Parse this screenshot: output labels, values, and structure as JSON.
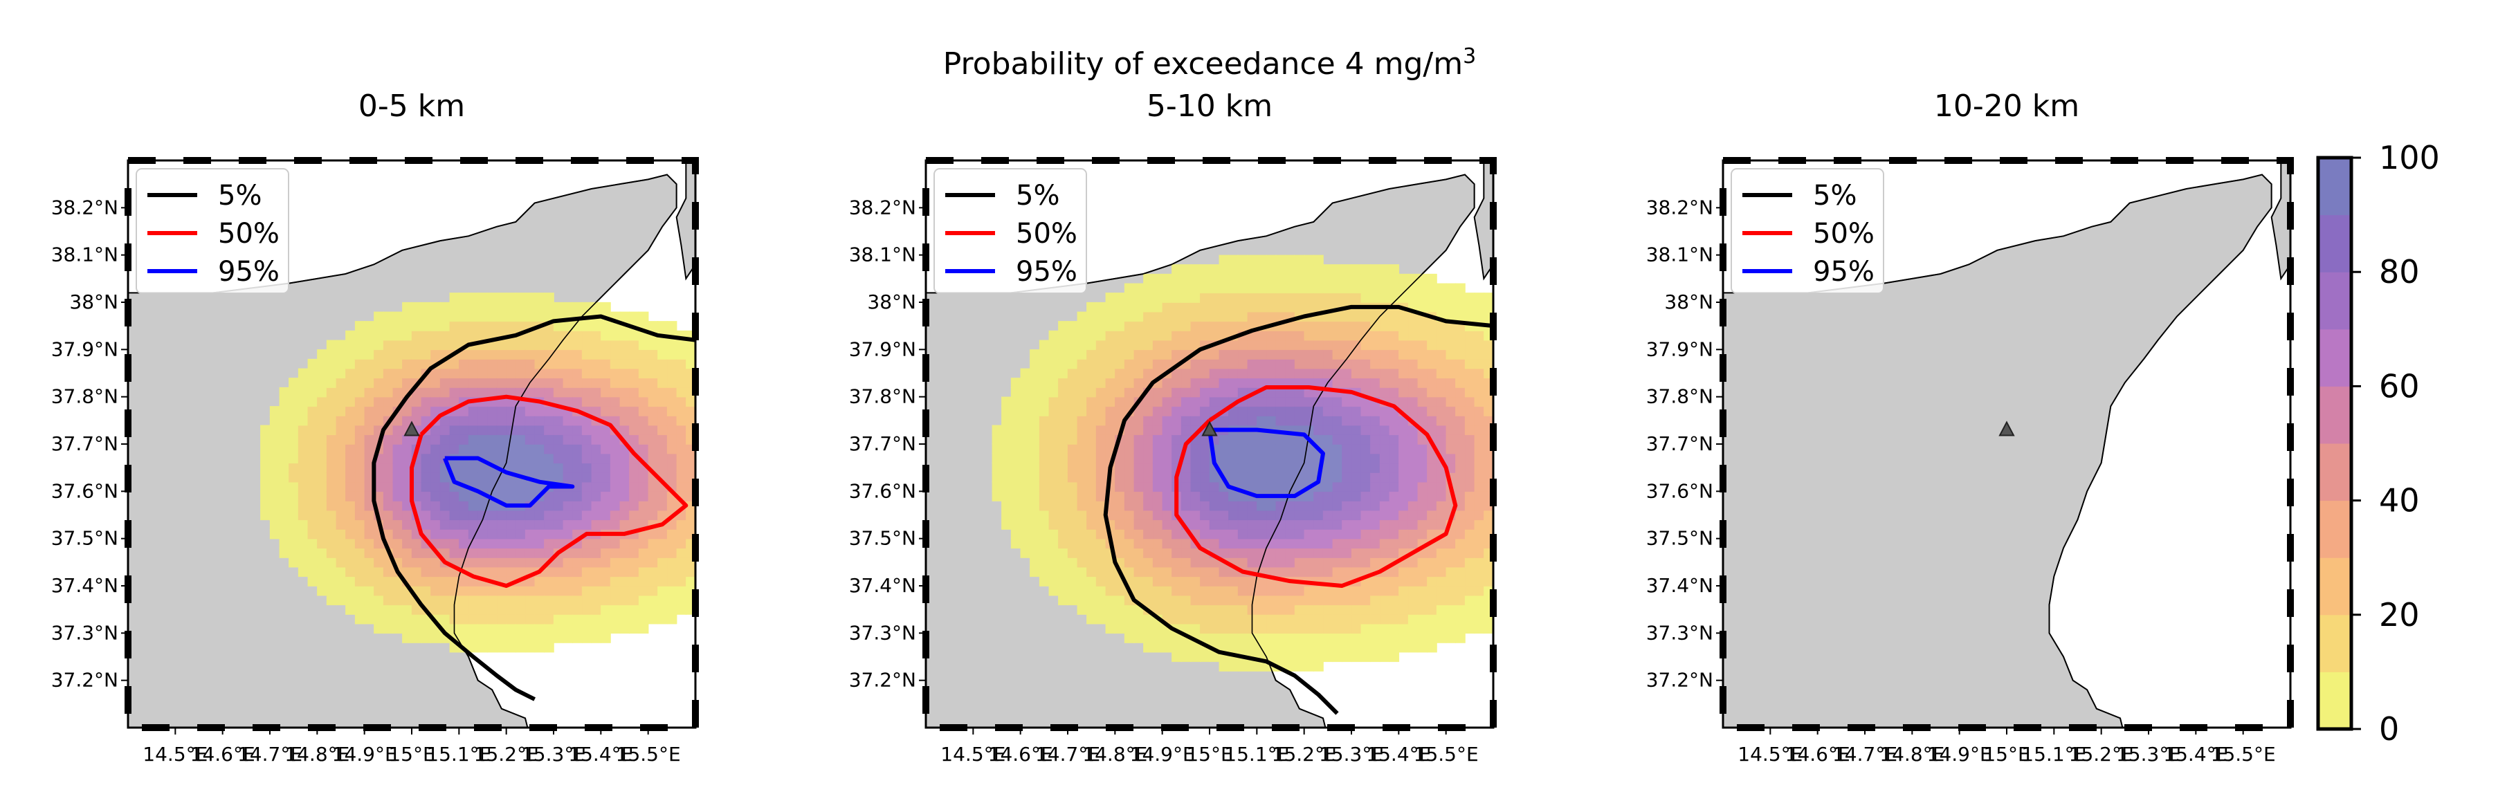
{
  "figure": {
    "suptitle_prefix": "Probability of exceedance 4 mg/m",
    "suptitle_superscript": "3"
  },
  "colorbar": {
    "ticks": [
      "0",
      "20",
      "40",
      "60",
      "80",
      "100"
    ],
    "range": [
      0,
      100
    ],
    "colors": [
      "#f2f27a",
      "#f7d878",
      "#f9c07c",
      "#f4aa84",
      "#e69590",
      "#d382a8",
      "#b978c4",
      "#a070c4",
      "#8a6cc2",
      "#7a7cc0"
    ]
  },
  "legend": {
    "entries": [
      {
        "label": "5%",
        "color": "#000000"
      },
      {
        "label": "50%",
        "color": "#ff0000"
      },
      {
        "label": "95%",
        "color": "#0000ff"
      }
    ]
  },
  "axes": {
    "xticks": [
      "14.5°E",
      "14.6°E",
      "14.7°E",
      "14.8°E",
      "14.9°E",
      "15°E",
      "15.1°E",
      "15.2°E",
      "15.3°E",
      "15.4°E",
      "15.5°E"
    ],
    "yticks": [
      "38.2°N",
      "38.1°N",
      "38°N",
      "37.9°N",
      "37.8°N",
      "37.7°N",
      "37.6°N",
      "37.5°N",
      "37.4°N",
      "37.3°N",
      "37.2°N"
    ]
  },
  "chart_data": [
    {
      "type": "heatmap",
      "title": "0-5 km",
      "xlim": [
        14.4,
        15.6
      ],
      "ylim": [
        37.1,
        38.3
      ],
      "grid": false,
      "legend_position": "top-left",
      "vent": {
        "lon": 15.0,
        "lat": 37.73
      },
      "probability_field": {
        "center": [
          15.17,
          37.64
        ],
        "peak": 100,
        "decay_km_to_5pct": 0.38
      },
      "contours": [
        {
          "level": "5%",
          "points": [
            [
              15.6,
              37.92
            ],
            [
              15.52,
              37.93
            ],
            [
              15.4,
              37.97
            ],
            [
              15.3,
              37.96
            ],
            [
              15.22,
              37.93
            ],
            [
              15.12,
              37.91
            ],
            [
              15.04,
              37.86
            ],
            [
              14.99,
              37.8
            ],
            [
              14.94,
              37.73
            ],
            [
              14.92,
              37.66
            ],
            [
              14.92,
              37.58
            ],
            [
              14.94,
              37.5
            ],
            [
              14.97,
              37.43
            ],
            [
              15.02,
              37.36
            ],
            [
              15.07,
              37.3
            ],
            [
              15.13,
              37.25
            ],
            [
              15.18,
              37.21
            ],
            [
              15.22,
              37.18
            ],
            [
              15.26,
              37.16
            ]
          ]
        },
        {
          "level": "50%",
          "points": [
            [
              15.02,
              37.72
            ],
            [
              15.06,
              37.76
            ],
            [
              15.12,
              37.79
            ],
            [
              15.2,
              37.8
            ],
            [
              15.27,
              37.79
            ],
            [
              15.35,
              37.77
            ],
            [
              15.42,
              37.74
            ],
            [
              15.47,
              37.68
            ],
            [
              15.53,
              37.62
            ],
            [
              15.58,
              37.57
            ],
            [
              15.53,
              37.53
            ],
            [
              15.45,
              37.51
            ],
            [
              15.37,
              37.51
            ],
            [
              15.31,
              37.47
            ],
            [
              15.27,
              37.43
            ],
            [
              15.2,
              37.4
            ],
            [
              15.13,
              37.42
            ],
            [
              15.07,
              37.45
            ],
            [
              15.02,
              37.51
            ],
            [
              15.0,
              37.58
            ],
            [
              15.0,
              37.65
            ],
            [
              15.02,
              37.72
            ]
          ]
        },
        {
          "level": "95%",
          "points": [
            [
              15.07,
              37.67
            ],
            [
              15.14,
              37.67
            ],
            [
              15.2,
              37.64
            ],
            [
              15.27,
              37.62
            ],
            [
              15.34,
              37.61
            ],
            [
              15.29,
              37.61
            ],
            [
              15.25,
              37.57
            ],
            [
              15.2,
              37.57
            ],
            [
              15.14,
              37.6
            ],
            [
              15.09,
              37.62
            ],
            [
              15.07,
              37.67
            ]
          ]
        }
      ]
    },
    {
      "type": "heatmap",
      "title": "5-10 km",
      "xlim": [
        14.4,
        15.6
      ],
      "ylim": [
        37.1,
        38.3
      ],
      "grid": false,
      "legend_position": "top-left",
      "vent": {
        "lon": 15.0,
        "lat": 37.73
      },
      "probability_field": {
        "center": [
          15.12,
          37.66
        ],
        "peak": 100,
        "decay_km_to_5pct": 0.44
      },
      "contours": [
        {
          "level": "5%",
          "points": [
            [
              15.6,
              37.95
            ],
            [
              15.5,
              37.96
            ],
            [
              15.4,
              37.99
            ],
            [
              15.3,
              37.99
            ],
            [
              15.2,
              37.97
            ],
            [
              15.09,
              37.94
            ],
            [
              14.98,
              37.9
            ],
            [
              14.88,
              37.83
            ],
            [
              14.82,
              37.75
            ],
            [
              14.79,
              37.65
            ],
            [
              14.78,
              37.55
            ],
            [
              14.8,
              37.45
            ],
            [
              14.84,
              37.37
            ],
            [
              14.92,
              37.31
            ],
            [
              15.02,
              37.26
            ],
            [
              15.12,
              37.24
            ],
            [
              15.18,
              37.21
            ],
            [
              15.23,
              37.17
            ],
            [
              15.27,
              37.13
            ]
          ]
        },
        {
          "level": "50%",
          "points": [
            [
              15.0,
              37.75
            ],
            [
              15.06,
              37.79
            ],
            [
              15.12,
              37.82
            ],
            [
              15.21,
              37.82
            ],
            [
              15.3,
              37.81
            ],
            [
              15.39,
              37.78
            ],
            [
              15.46,
              37.72
            ],
            [
              15.5,
              37.65
            ],
            [
              15.52,
              37.57
            ],
            [
              15.5,
              37.51
            ],
            [
              15.43,
              37.47
            ],
            [
              15.36,
              37.43
            ],
            [
              15.28,
              37.4
            ],
            [
              15.17,
              37.41
            ],
            [
              15.07,
              37.43
            ],
            [
              14.98,
              37.48
            ],
            [
              14.93,
              37.55
            ],
            [
              14.93,
              37.63
            ],
            [
              14.95,
              37.7
            ],
            [
              15.0,
              37.75
            ]
          ]
        },
        {
          "level": "95%",
          "points": [
            [
              15.0,
              37.73
            ],
            [
              15.1,
              37.73
            ],
            [
              15.2,
              37.72
            ],
            [
              15.24,
              37.68
            ],
            [
              15.23,
              37.62
            ],
            [
              15.18,
              37.59
            ],
            [
              15.1,
              37.59
            ],
            [
              15.04,
              37.61
            ],
            [
              15.01,
              37.66
            ],
            [
              15.0,
              37.73
            ]
          ]
        }
      ]
    },
    {
      "type": "heatmap",
      "title": "10-20 km",
      "xlim": [
        14.4,
        15.6
      ],
      "ylim": [
        37.1,
        38.3
      ],
      "grid": false,
      "legend_position": "top-left",
      "vent": {
        "lon": 15.0,
        "lat": 37.73
      },
      "probability_field": null,
      "contours": []
    }
  ]
}
